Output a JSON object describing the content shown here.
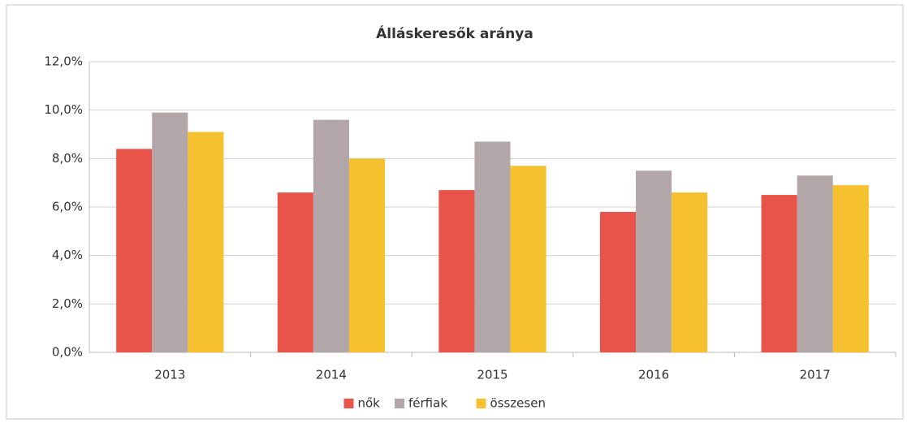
{
  "chart_data": {
    "type": "bar",
    "title": "Álláskeresők aránya",
    "categories": [
      "2013",
      "2014",
      "2015",
      "2016",
      "2017"
    ],
    "series": [
      {
        "name": "nők",
        "color": "#e8534a",
        "values": [
          8.4,
          6.6,
          6.7,
          5.8,
          6.5
        ]
      },
      {
        "name": "férfiak",
        "color": "#b3a6a8",
        "values": [
          9.9,
          9.6,
          8.7,
          7.5,
          7.3
        ]
      },
      {
        "name": "összesen",
        "color": "#f5c12e",
        "values": [
          9.1,
          8.0,
          7.7,
          6.6,
          6.9
        ]
      }
    ],
    "ylim": [
      0,
      12
    ],
    "yticks": [
      {
        "value": 0,
        "label": "0,0%"
      },
      {
        "value": 2,
        "label": "2,0%"
      },
      {
        "value": 4,
        "label": "4,0%"
      },
      {
        "value": 6,
        "label": "6,0%"
      },
      {
        "value": 8,
        "label": "8,0%"
      },
      {
        "value": 10,
        "label": "10,0%"
      },
      {
        "value": 12,
        "label": "12,0%"
      }
    ],
    "grid": true,
    "legend": "bottom"
  }
}
